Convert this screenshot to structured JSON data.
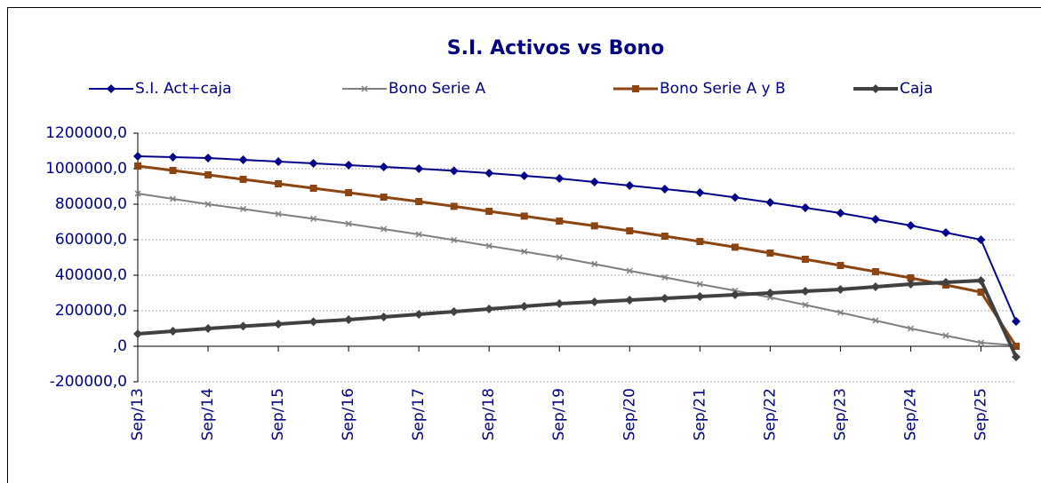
{
  "chart_data": {
    "type": "line",
    "title": "S.I. Activos vs Bono",
    "categories": [
      "Sep/13",
      null,
      "Sep/14",
      null,
      "Sep/15",
      null,
      "Sep/16",
      null,
      "Sep/17",
      null,
      "Sep/18",
      null,
      "Sep/19",
      null,
      "Sep/20",
      null,
      "Sep/21",
      null,
      "Sep/22",
      null,
      "Sep/23",
      null,
      "Sep/24",
      null,
      "Sep/25",
      null
    ],
    "series": [
      {
        "name": "S.I. Act+caja",
        "color": "#00008b",
        "marker": "diamond",
        "values": [
          1070000,
          1065000,
          1060000,
          1050000,
          1040000,
          1030000,
          1020000,
          1010000,
          1000000,
          988000,
          975000,
          960000,
          945000,
          925000,
          905000,
          885000,
          865000,
          838000,
          810000,
          780000,
          750000,
          715000,
          680000,
          640000,
          600000,
          140000
        ]
      },
      {
        "name": "Bono Serie A",
        "color": "#7f7f7f",
        "marker": "x",
        "values": [
          860000,
          830000,
          800000,
          773000,
          745000,
          718000,
          690000,
          660000,
          630000,
          598000,
          565000,
          533000,
          500000,
          463000,
          425000,
          388000,
          350000,
          313000,
          275000,
          233000,
          190000,
          145000,
          100000,
          60000,
          20000,
          5000
        ]
      },
      {
        "name": "Bono Serie A y B",
        "color": "#8b4513",
        "marker": "square",
        "values": [
          1015000,
          990000,
          965000,
          940000,
          915000,
          890000,
          865000,
          840000,
          815000,
          788000,
          760000,
          733000,
          705000,
          678000,
          650000,
          620000,
          590000,
          558000,
          525000,
          490000,
          455000,
          420000,
          385000,
          345000,
          305000,
          0
        ]
      },
      {
        "name": "Caja",
        "color": "#404040",
        "marker": "diamond",
        "values": [
          70000,
          85000,
          100000,
          113000,
          125000,
          138000,
          150000,
          165000,
          180000,
          195000,
          210000,
          225000,
          240000,
          250000,
          260000,
          270000,
          280000,
          290000,
          300000,
          310000,
          320000,
          335000,
          350000,
          360000,
          370000,
          -60000
        ]
      }
    ],
    "ylim": [
      -200000,
      1200000
    ],
    "yticks": [
      {
        "value": -200000,
        "label": "-200000,0"
      },
      {
        "value": 0,
        "label": ",0"
      },
      {
        "value": 200000,
        "label": "200000,0"
      },
      {
        "value": 400000,
        "label": "400000,0"
      },
      {
        "value": 600000,
        "label": "600000,0"
      },
      {
        "value": 800000,
        "label": "800000,0"
      },
      {
        "value": 1000000,
        "label": "1000000,0"
      },
      {
        "value": 1200000,
        "label": "1200000,0"
      }
    ],
    "grid": true
  }
}
